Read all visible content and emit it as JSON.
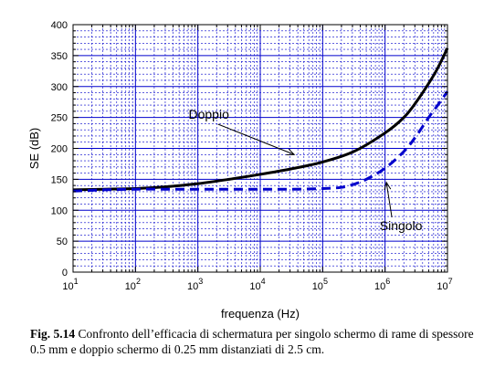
{
  "caption": {
    "label": "Fig. 5.14",
    "text": "Confronto dell’efficacia di schermatura per singolo schermo di rame di spessore 0.5 mm e doppio schermo di 0.25 mm distanziati di 2.5 cm."
  },
  "chart_data": {
    "type": "line",
    "title": "",
    "xlabel": "frequenza (Hz)",
    "ylabel": "SE (dB)",
    "xscale": "log",
    "xlim": [
      10,
      10000000
    ],
    "ylim": [
      0,
      400
    ],
    "x_ticks": [
      {
        "value": 10,
        "base": "10",
        "exp": "1"
      },
      {
        "value": 100,
        "base": "10",
        "exp": "2"
      },
      {
        "value": 1000,
        "base": "10",
        "exp": "3"
      },
      {
        "value": 10000,
        "base": "10",
        "exp": "4"
      },
      {
        "value": 100000,
        "base": "10",
        "exp": "5"
      },
      {
        "value": 1000000,
        "base": "10",
        "exp": "6"
      },
      {
        "value": 10000000,
        "base": "10",
        "exp": "7"
      }
    ],
    "y_ticks": [
      0,
      50,
      100,
      150,
      200,
      250,
      300,
      350,
      400
    ],
    "grid": true,
    "series": [
      {
        "name": "Doppio",
        "style": "solid",
        "color": "#000000",
        "x": [
          10,
          31.6,
          100,
          316,
          1000,
          3160,
          10000,
          31600,
          100000,
          316000,
          1000000,
          2000000,
          3160000,
          5000000,
          7000000,
          10000000
        ],
        "y": [
          133,
          134,
          135,
          138,
          143,
          150,
          158,
          167,
          178,
          195,
          225,
          250,
          275,
          305,
          330,
          362
        ]
      },
      {
        "name": "Singolo",
        "style": "dashed",
        "color": "#0000cc",
        "x": [
          10,
          31.6,
          100,
          316,
          1000,
          3160,
          10000,
          31600,
          100000,
          200000,
          316000,
          500000,
          1000000,
          2000000,
          3160000,
          5000000,
          7000000,
          10000000
        ],
        "y": [
          131,
          133,
          134,
          134,
          134,
          134,
          134,
          134,
          135,
          137,
          142,
          150,
          168,
          195,
          220,
          250,
          270,
          292
        ]
      }
    ],
    "annotations": [
      {
        "text": "Doppio",
        "label_x": 1500,
        "label_y": 248,
        "arrow_to_x": 35000,
        "arrow_to_y": 190
      },
      {
        "text": "Singolo",
        "label_x": 1800000,
        "label_y": 68,
        "arrow_to_x": 1050000,
        "arrow_to_y": 145
      }
    ]
  }
}
